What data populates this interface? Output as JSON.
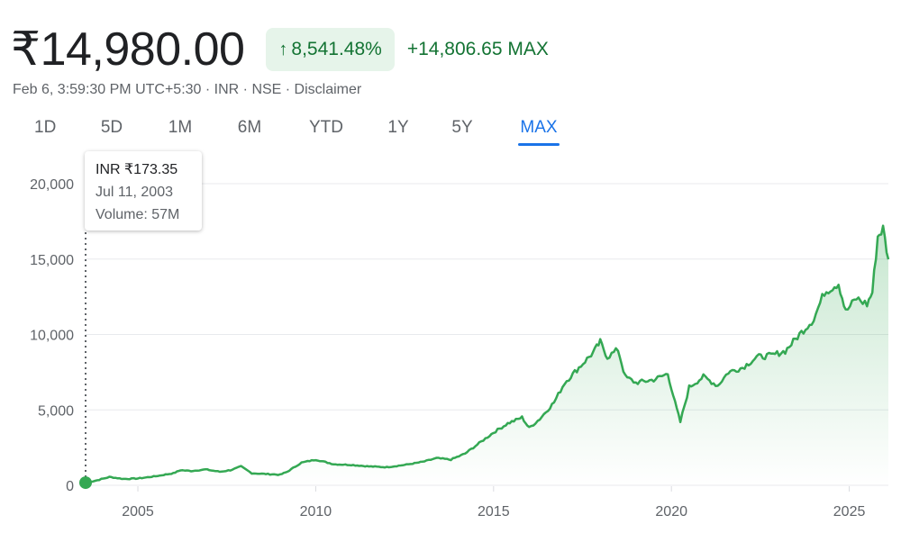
{
  "header": {
    "price": "₹14,980.00",
    "percent_change": "8,541.48%",
    "abs_change": "+14,806.65 MAX",
    "meta": "Feb 6, 3:59:30 PM UTC+5:30 · INR · NSE · Disclaimer",
    "arrow_icon": "arrow-up-icon"
  },
  "tabs": [
    {
      "label": "1D"
    },
    {
      "label": "5D"
    },
    {
      "label": "1M"
    },
    {
      "label": "6M"
    },
    {
      "label": "YTD"
    },
    {
      "label": "1Y"
    },
    {
      "label": "5Y"
    },
    {
      "label": "MAX",
      "active": true
    }
  ],
  "tooltip": {
    "price": "INR ₹173.35",
    "date": "Jul 11, 2003",
    "volume": "Volume: 57M"
  },
  "colors": {
    "line": "#34a853",
    "accent": "#1a73e8",
    "positive": "#137333",
    "badge_bg": "#e6f4ea"
  },
  "chart_data": {
    "type": "area",
    "ylim": [
      0,
      20000
    ],
    "xlim": [
      2003.53,
      2026.1
    ],
    "y_ticks": [
      0,
      5000,
      10000,
      15000,
      20000
    ],
    "y_tick_labels": [
      "0",
      "5,000",
      "10,000",
      "15,000",
      "20,000"
    ],
    "x_ticks": [
      2005,
      2010,
      2015,
      2020,
      2025
    ],
    "x_tick_labels": [
      "2005",
      "2010",
      "2015",
      "2020",
      "2025"
    ],
    "grid": true,
    "series": [
      {
        "x": [
          2003.53,
          2003.8,
          2004.2,
          2004.6,
          2005.0,
          2005.5,
          2006.0,
          2006.2,
          2006.5,
          2006.9,
          2007.3,
          2007.6,
          2007.9,
          2008.2,
          2008.6,
          2009.0,
          2009.2,
          2009.6,
          2010.0,
          2010.5,
          2011.0,
          2011.5,
          2012.0,
          2012.5,
          2013.0,
          2013.4,
          2013.8,
          2014.2,
          2014.6,
          2015.0,
          2015.4,
          2015.8,
          2016.0,
          2016.3,
          2016.7,
          2017.0,
          2017.4,
          2017.8,
          2018.0,
          2018.2,
          2018.5,
          2018.7,
          2019.0,
          2019.5,
          2019.9,
          2020.1,
          2020.25,
          2020.5,
          2020.9,
          2021.3,
          2021.6,
          2022.0,
          2022.4,
          2022.8,
          2023.2,
          2023.6,
          2024.0,
          2024.3,
          2024.7,
          2024.9,
          2025.2,
          2025.5,
          2025.65,
          2025.8,
          2025.95,
          2026.1
        ],
        "y": [
          173,
          300,
          550,
          420,
          450,
          600,
          800,
          1000,
          950,
          1050,
          900,
          1000,
          1250,
          800,
          750,
          700,
          900,
          1500,
          1700,
          1400,
          1350,
          1250,
          1200,
          1350,
          1550,
          1800,
          1700,
          2100,
          2800,
          3500,
          4100,
          4500,
          3800,
          4400,
          5500,
          6800,
          7800,
          8800,
          9500,
          8500,
          9000,
          7200,
          6800,
          7000,
          7400,
          5500,
          4200,
          6500,
          7200,
          6600,
          7500,
          7800,
          8500,
          8600,
          8900,
          10000,
          11000,
          12800,
          13400,
          11500,
          12400,
          12000,
          12800,
          16500,
          17000,
          14980
        ]
      }
    ]
  }
}
